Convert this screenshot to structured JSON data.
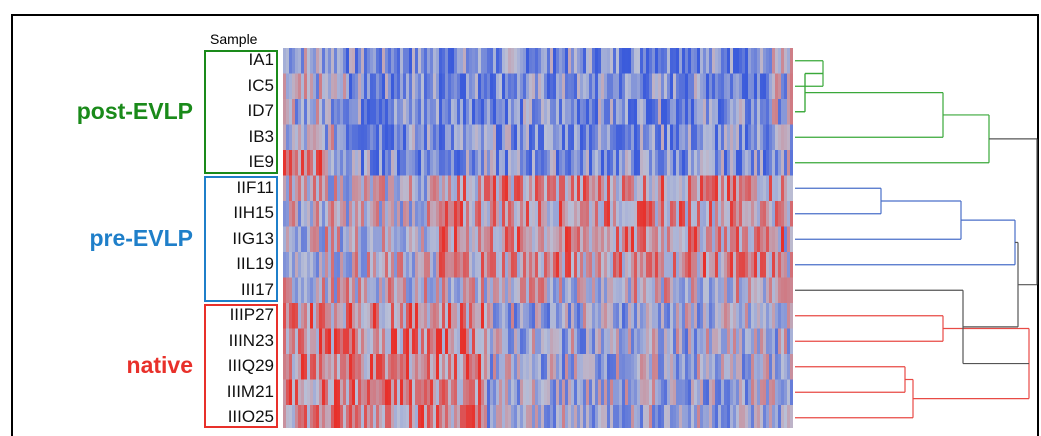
{
  "chart_data": {
    "type": "heatmap",
    "column_header": "Sample",
    "rows": [
      "IA1",
      "IC5",
      "ID7",
      "IB3",
      "IE9",
      "IIF11",
      "IIH15",
      "IIG13",
      "IIL19",
      "III17",
      "IIIP27",
      "IIIN23",
      "IIIQ29",
      "IIIM21",
      "IIIO25"
    ],
    "groups": [
      {
        "name": "post-EVLP",
        "color": "#1a8a1a",
        "rows": [
          "IA1",
          "IC5",
          "ID7",
          "IB3",
          "IE9"
        ]
      },
      {
        "name": "pre-EVLP",
        "color": "#1f7fc9",
        "rows": [
          "IIF11",
          "IIH15",
          "IIG13",
          "IIL19",
          "III17"
        ]
      },
      {
        "name": "native",
        "color": "#e8302a",
        "rows": [
          "IIIP27",
          "IIIN23",
          "IIIQ29",
          "IIIM21",
          "IIIO25"
        ]
      }
    ],
    "color_scale": {
      "low": "#3b5bdb",
      "mid": "#b9bfd6",
      "high": "#e8302a"
    },
    "dendrogram_colors": {
      "post-EVLP": "#3aa83a",
      "pre-EVLP": "#4a6fc9",
      "native": "#e84a45",
      "root": "#555555"
    }
  }
}
